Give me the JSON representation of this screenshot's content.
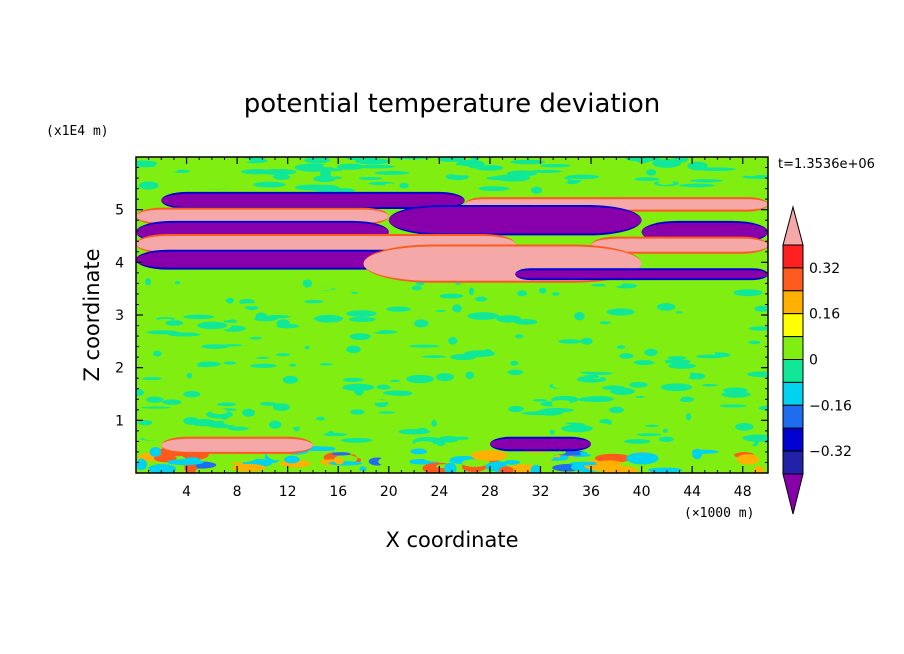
{
  "chart_data": {
    "type": "heatmap",
    "title": "potential temperature deviation",
    "xlabel": "X coordinate",
    "ylabel": "Z coordinate",
    "x_unit": "(×1000 m)",
    "y_unit": "(x1E4 m)",
    "time_label": "t=1.3536e+06",
    "xlim": [
      0,
      50
    ],
    "ylim": [
      0,
      6
    ],
    "x_ticks": [
      4,
      8,
      12,
      16,
      20,
      24,
      28,
      32,
      36,
      40,
      44,
      48
    ],
    "y_ticks": [
      1,
      2,
      3,
      4,
      5
    ],
    "x_tick_labels": [
      "4",
      "8",
      "12",
      "16",
      "20",
      "24",
      "28",
      "32",
      "36",
      "40",
      "44",
      "48"
    ],
    "y_tick_labels": [
      "1",
      "2",
      "3",
      "4",
      "5"
    ],
    "colorbar": {
      "levels": [
        -0.4,
        -0.32,
        -0.24,
        -0.16,
        -0.08,
        0,
        0.08,
        0.16,
        0.24,
        0.32,
        0.4
      ],
      "labeled_values": [
        0.32,
        0.16,
        0,
        -0.16,
        -0.32
      ],
      "labels": [
        "0.32",
        "0.16",
        "0",
        "−0.16",
        "−0.32"
      ],
      "colors": [
        "#8800aa",
        "#2222a8",
        "#0000d0",
        "#1e6cf0",
        "#00d2f0",
        "#10e898",
        "#80ee10",
        "#ffff00",
        "#ffb000",
        "#ff5a1e",
        "#ff2020",
        "#f5a8a8"
      ]
    },
    "bands": [
      {
        "z": [
          5.35,
          6.0
        ],
        "value": 0.0,
        "note": "upper green"
      },
      {
        "z": [
          5.05,
          5.3
        ],
        "value": -0.4,
        "segments": [
          [
            2,
            26
          ]
        ]
      },
      {
        "z": [
          5.0,
          5.2
        ],
        "value": 0.4,
        "segments": [
          [
            26,
            50
          ]
        ]
      },
      {
        "z": [
          4.75,
          5.0
        ],
        "value": 0.4,
        "segments": [
          [
            0,
            20
          ]
        ]
      },
      {
        "z": [
          4.55,
          5.05
        ],
        "value": -0.4,
        "segments": [
          [
            20,
            40
          ]
        ]
      },
      {
        "z": [
          4.4,
          4.75
        ],
        "value": -0.4,
        "segments": [
          [
            0,
            20
          ]
        ]
      },
      {
        "z": [
          4.2,
          4.5
        ],
        "value": 0.4,
        "segments": [
          [
            0,
            30
          ]
        ]
      },
      {
        "z": [
          4.4,
          4.75
        ],
        "value": -0.4,
        "segments": [
          [
            40,
            50
          ]
        ]
      },
      {
        "z": [
          4.2,
          4.45
        ],
        "value": 0.4,
        "segments": [
          [
            36,
            50
          ]
        ]
      },
      {
        "z": [
          3.9,
          4.2
        ],
        "value": -0.4,
        "segments": [
          [
            0,
            30
          ]
        ]
      },
      {
        "z": [
          3.65,
          4.3
        ],
        "value": 0.4,
        "segments": [
          [
            18,
            40
          ]
        ]
      },
      {
        "z": [
          3.7,
          3.85
        ],
        "value": -0.4,
        "segments": [
          [
            30,
            50
          ]
        ]
      },
      {
        "z": [
          0.65,
          3.65
        ],
        "value": 0.0,
        "note": "noisy neutral layer"
      },
      {
        "z": [
          0.4,
          0.65
        ],
        "value": 0.4,
        "segments": [
          [
            2,
            14
          ]
        ]
      },
      {
        "z": [
          0.45,
          0.65
        ],
        "value": -0.4,
        "segments": [
          [
            28,
            36
          ]
        ]
      },
      {
        "z": [
          0.0,
          0.4
        ],
        "value": -0.16,
        "note": "bottom cyan/yellow patches"
      }
    ]
  }
}
